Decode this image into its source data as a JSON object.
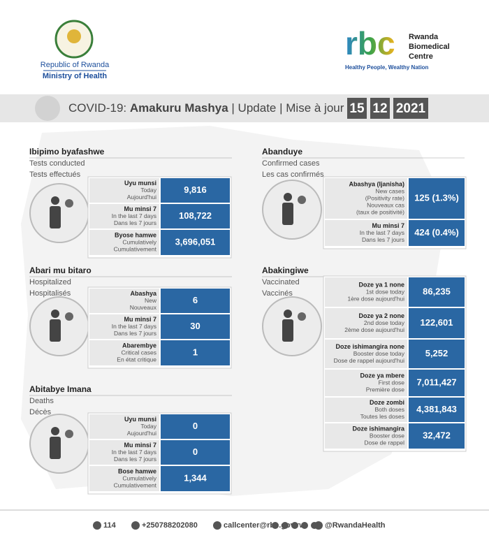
{
  "header": {
    "left_org": [
      "Republic of Rwanda",
      "Ministry of Health"
    ],
    "right_logo": "rbc",
    "right_org": [
      "Rwanda",
      "Biomedical",
      "Centre"
    ],
    "tagline": "Healthy People, Wealthy Nation"
  },
  "banner": {
    "prefix": "COVID-19:",
    "title": "Amakuru Mashya",
    "separator": "|",
    "parts": [
      "Update",
      "Mise à jour"
    ],
    "date": [
      "15",
      "12",
      "2021"
    ]
  },
  "sections": [
    {
      "title": [
        "Ibipimo byafashwe",
        "Tests conducted",
        "Tests effectués"
      ],
      "rows": [
        {
          "label": [
            "Uyu munsi",
            "Today",
            "Aujourd'hui"
          ],
          "value": "9,816"
        },
        {
          "label": [
            "Mu minsi 7",
            "In the last 7 days",
            "Dans les 7 jours"
          ],
          "value": "108,722"
        },
        {
          "label": [
            "Byose hamwe",
            "Cumulatively",
            "Cumulativement"
          ],
          "value": "3,696,051"
        }
      ]
    },
    {
      "title": [
        "Abanduye",
        "Confirmed cases",
        "Les cas confirmés"
      ],
      "rows": [
        {
          "label": [
            "Abashya (Ijanisha)",
            "New cases",
            "(Positivity rate)",
            "Nouveaux cas",
            "(taux de positivité)"
          ],
          "value": "125 (1.3%)"
        },
        {
          "label": [
            "Mu minsi 7",
            "In the last 7 days",
            "Dans les 7 jours"
          ],
          "value": "424 (0.4%)"
        }
      ]
    },
    {
      "title": [
        "Abari mu bitaro",
        "Hospitalized",
        "Hospitalisés"
      ],
      "rows": [
        {
          "label": [
            "Abashya",
            "New",
            "Nouveaux"
          ],
          "value": "6"
        },
        {
          "label": [
            "Mu minsi 7",
            "In the last 7 days",
            "Dans les 7 jours"
          ],
          "value": "30"
        },
        {
          "label": [
            "Abarembye",
            "Critical cases",
            "En état critique"
          ],
          "value": "1"
        }
      ]
    },
    {
      "title": [
        "Abakingiwe",
        "Vaccinated",
        "Vaccinés"
      ],
      "rows": [
        {
          "label": [
            "Doze ya 1 none",
            "1st dose today",
            "1ère dose  aujourd'hui"
          ],
          "value": "86,235"
        },
        {
          "label": [
            "Doze ya 2 none",
            "2nd dose today",
            "2ème dose  aujourd'hui"
          ],
          "value": "122,601"
        },
        {
          "label": [
            "Doze ishimangira none",
            "Booster dose today",
            "Dose de rappel aujourd'hui"
          ],
          "value": "5,252"
        },
        {
          "label": [
            "Doze ya mbere",
            "First dose",
            "Première dose"
          ],
          "value": "7,011,427"
        },
        {
          "label": [
            "Doze zombi",
            "Both doses",
            "Toutes les doses"
          ],
          "value": "4,381,843"
        },
        {
          "label": [
            "Doze ishimangira",
            "Booster dose",
            "Dose de rappel"
          ],
          "value": "32,472"
        }
      ]
    },
    {
      "title": [
        "Abitabye Imana",
        "Deaths",
        "Décès"
      ],
      "rows": [
        {
          "label": [
            "Uyu munsi",
            "Today",
            "Aujourd'hui"
          ],
          "value": "0"
        },
        {
          "label": [
            "Mu minsi 7",
            "In the last 7 days",
            "Dans les 7 jours"
          ],
          "value": "0"
        },
        {
          "label": [
            "Bose hamwe",
            "Cumulatively",
            "Cumulativement"
          ],
          "value": "1,344"
        }
      ]
    }
  ],
  "footer": {
    "phone": "114",
    "mobile": "+250788202080",
    "email": "callcenter@rbc.gov.rw",
    "social": "@RwandaHealth"
  }
}
